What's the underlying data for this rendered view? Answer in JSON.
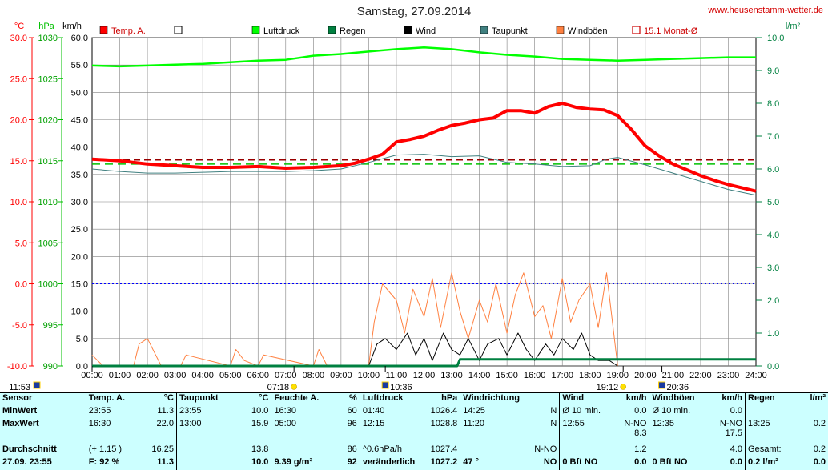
{
  "title": "Samstag, 27.09.2014",
  "site": "www.heusenstamm-wetter.de",
  "axis_headers": {
    "temp": "°C",
    "hpa": "hPa",
    "kmh": "km/h",
    "rain": "l/m²"
  },
  "legend": [
    {
      "label": "Temp. A.",
      "color": "#ff0000",
      "style": "fill"
    },
    {
      "label": "",
      "color": "#ffffff",
      "style": "box"
    },
    {
      "label": "Luftdruck",
      "color": "#00ff00",
      "style": "fill"
    },
    {
      "label": "Regen",
      "color": "#008040",
      "style": "fill"
    },
    {
      "label": "Wind",
      "color": "#000000",
      "style": "fill"
    },
    {
      "label": "Taupunkt",
      "color": "#408080",
      "style": "fill"
    },
    {
      "label": "Windböen",
      "color": "#ff8040",
      "style": "fill"
    },
    {
      "label": "15.1 Monat-Ø",
      "color": "#cc0000",
      "style": "outline"
    }
  ],
  "colors": {
    "temp": "#ff0000",
    "pressure": "#00ff00",
    "rain": "#008040",
    "wind": "#000000",
    "dew": "#408080",
    "gust": "#ff8040",
    "grid": "#808080",
    "avg_temp": "#990000",
    "avg_pressure": "#00c000",
    "zero_line": "#0000ff"
  },
  "markers": [
    {
      "label": "11:53",
      "hour": 0.0,
      "icon": "moon-icon"
    },
    {
      "label": "07:18",
      "hour": 7.3,
      "icon": "sun-icon"
    },
    {
      "label": "10:36",
      "hour": 10.6,
      "icon": "moon-icon"
    },
    {
      "label": "19:12",
      "hour": 19.2,
      "icon": "sun-icon"
    },
    {
      "label": "20:36",
      "hour": 20.6,
      "icon": "moon-icon"
    }
  ],
  "chart_data": {
    "type": "line",
    "title": "Samstag, 27.09.2014",
    "x_ticks": [
      "00:00",
      "01:00",
      "02:00",
      "03:00",
      "04:00",
      "05:00",
      "06:00",
      "07:00",
      "08:00",
      "09:00",
      "10:00",
      "11:00",
      "12:00",
      "13:00",
      "14:00",
      "15:00",
      "16:00",
      "17:00",
      "18:00",
      "19:00",
      "20:00",
      "21:00",
      "22:00",
      "23:00",
      "24:00"
    ],
    "xlim": [
      0,
      24
    ],
    "axes": {
      "temp": {
        "label": "°C",
        "ticks": [
          "30.0",
          "25.0",
          "20.0",
          "15.0",
          "10.0",
          "5.0",
          "0.0",
          "-5.0",
          "-10.0"
        ],
        "ylim": [
          -10,
          30
        ]
      },
      "pressure": {
        "label": "hPa",
        "ticks": [
          "1030",
          "1025",
          "1020",
          "1015",
          "1010",
          "1005",
          "1000",
          "995",
          "990"
        ],
        "ylim": [
          990,
          1030
        ]
      },
      "wind": {
        "label": "km/h",
        "ticks": [
          "60.0",
          "55.0",
          "50.0",
          "45.0",
          "40.0",
          "35.0",
          "30.0",
          "25.0",
          "20.0",
          "15.0",
          "10.0",
          "5.0",
          "0.0"
        ],
        "ylim": [
          0,
          60
        ]
      },
      "rain": {
        "label": "l/m²",
        "ticks": [
          "10.0",
          "9.0",
          "8.0",
          "7.0",
          "6.0",
          "5.0",
          "4.0",
          "3.0",
          "2.0",
          "1.0",
          "0.0"
        ],
        "ylim": [
          0,
          10
        ]
      }
    },
    "series": [
      {
        "name": "Temp. A.",
        "axis": "temp",
        "x": [
          0,
          1,
          2,
          3,
          4,
          5,
          6,
          7,
          8,
          9,
          9.5,
          10,
          10.5,
          11,
          11.5,
          12,
          12.5,
          13,
          13.5,
          14,
          14.5,
          15,
          15.5,
          16,
          16.5,
          17,
          17.5,
          18,
          18.5,
          19,
          19.5,
          20,
          20.5,
          21,
          21.5,
          22,
          22.5,
          23,
          23.5,
          24
        ],
        "y": [
          15.2,
          15.0,
          14.6,
          14.4,
          14.2,
          14.2,
          14.3,
          14.1,
          14.2,
          14.4,
          14.7,
          15.2,
          15.8,
          17.3,
          17.6,
          18.0,
          18.7,
          19.3,
          19.6,
          20.0,
          20.2,
          21.1,
          21.1,
          20.8,
          21.6,
          22.0,
          21.5,
          21.3,
          21.2,
          20.5,
          18.8,
          16.8,
          15.6,
          14.6,
          13.9,
          13.2,
          12.6,
          12.1,
          11.7,
          11.3
        ]
      },
      {
        "name": "Luftdruck",
        "axis": "pressure",
        "x": [
          0,
          1,
          2,
          3,
          4,
          5,
          6,
          7,
          8,
          9,
          10,
          11,
          12,
          13,
          14,
          15,
          16,
          17,
          18,
          19,
          20,
          21,
          22,
          23,
          24
        ],
        "y": [
          1026.6,
          1026.5,
          1026.6,
          1026.7,
          1026.8,
          1027.0,
          1027.2,
          1027.3,
          1027.8,
          1028.0,
          1028.3,
          1028.6,
          1028.8,
          1028.6,
          1028.2,
          1027.9,
          1027.7,
          1027.4,
          1027.3,
          1027.2,
          1027.3,
          1027.4,
          1027.5,
          1027.6,
          1027.6
        ]
      },
      {
        "name": "Taupunkt",
        "axis": "temp",
        "x": [
          0,
          1,
          2,
          3,
          4,
          5,
          6,
          7,
          8,
          9,
          10,
          11,
          12,
          13,
          14,
          15,
          16,
          17,
          18,
          18.6,
          19,
          20,
          21,
          22,
          23,
          24
        ],
        "y": [
          14.0,
          13.7,
          13.5,
          13.5,
          13.6,
          13.7,
          13.7,
          13.7,
          13.8,
          14.0,
          14.8,
          15.7,
          15.8,
          15.5,
          15.6,
          14.8,
          14.6,
          14.3,
          14.4,
          15.2,
          15.4,
          14.5,
          13.5,
          12.5,
          11.5,
          10.8
        ]
      },
      {
        "name": "Wind",
        "axis": "wind",
        "x": [
          10,
          10.3,
          10.6,
          11,
          11.4,
          11.7,
          12,
          12.3,
          12.7,
          13,
          13.3,
          13.6,
          14,
          14.3,
          14.7,
          15,
          15.4,
          15.7,
          16,
          16.4,
          16.7,
          17,
          17.4,
          17.7,
          18,
          18.3,
          18.7,
          19
        ],
        "y": [
          0,
          4,
          5,
          3,
          6,
          2,
          5,
          1,
          6,
          3,
          2,
          5,
          1,
          4,
          5,
          2,
          6,
          3,
          1,
          4,
          2,
          5,
          3,
          6,
          2,
          1,
          1,
          0
        ]
      },
      {
        "name": "Windböen",
        "axis": "wind",
        "x": [
          0,
          0.2,
          0.4,
          1.5,
          1.7,
          2,
          2.3,
          2.5,
          3.2,
          3.4,
          5,
          5.2,
          5.5,
          6,
          6.2,
          8,
          8.2,
          8.5,
          10,
          10.2,
          10.5,
          11,
          11.3,
          11.6,
          12,
          12.3,
          12.6,
          13,
          13.3,
          13.6,
          14,
          14.3,
          14.6,
          15,
          15.3,
          15.6,
          16,
          16.3,
          16.6,
          17,
          17.3,
          17.6,
          18,
          18.3,
          18.6,
          19
        ],
        "y": [
          2,
          1,
          0,
          0,
          4,
          5,
          2,
          0,
          0,
          2,
          0,
          3,
          1,
          0,
          2,
          0,
          3,
          0,
          0,
          8,
          15,
          12,
          6,
          14,
          9,
          16,
          7,
          17,
          10,
          5,
          12,
          8,
          15,
          6,
          13,
          17,
          9,
          11,
          5,
          16,
          8,
          12,
          15,
          7,
          17,
          0
        ]
      },
      {
        "name": "Regen",
        "axis": "rain",
        "x": [
          0,
          13.2,
          13.3,
          24
        ],
        "y": [
          0,
          0,
          0.2,
          0.2
        ]
      }
    ],
    "reference_lines": [
      {
        "name": "15.1 Monat-Ø",
        "axis": "temp",
        "value": 15.1
      },
      {
        "name": "Luftdruck Ø",
        "axis": "pressure",
        "value": 1014.6
      },
      {
        "name": "Nulllinie",
        "axis": "temp",
        "value": 0
      }
    ],
    "grid": true
  },
  "stats": {
    "headers": [
      {
        "name": "Sensor",
        "unit": ""
      },
      {
        "name": "Temp. A.",
        "unit": "°C"
      },
      {
        "name": "Taupunkt",
        "unit": "°C"
      },
      {
        "name": "Feuchte A.",
        "unit": "%"
      },
      {
        "name": "Luftdruck",
        "unit": "hPa"
      },
      {
        "name": "Windrichtung",
        "unit": ""
      },
      {
        "name": "Wind",
        "unit": "km/h"
      },
      {
        "name": "Windböen",
        "unit": "km/h"
      },
      {
        "name": "Regen",
        "unit": "l/m²"
      }
    ],
    "rows": [
      [
        [
          "MinWert",
          ""
        ],
        [
          "23:55",
          "11.3"
        ],
        [
          "23:55",
          "10.0"
        ],
        [
          "16:30",
          "60"
        ],
        [
          "01:40",
          "1026.4"
        ],
        [
          "14:25",
          "N"
        ],
        [
          "Ø 10 min.",
          "0.0"
        ],
        [
          "Ø 10 min.",
          "0.0"
        ],
        [
          "",
          ""
        ]
      ],
      [
        [
          "MaxWert",
          ""
        ],
        [
          "16:30",
          "22.0"
        ],
        [
          "13:00",
          "15.9"
        ],
        [
          "05:00",
          "96"
        ],
        [
          "12:15",
          "1028.8"
        ],
        [
          "11:20",
          "N"
        ],
        [
          "12:55",
          "N-NO 8.3"
        ],
        [
          "12:35",
          "N-NO 17.5"
        ],
        [
          "13:25",
          "0.2"
        ]
      ],
      [
        [
          "Durchschnitt",
          ""
        ],
        [
          "(+ 1.15 )",
          "16.25"
        ],
        [
          "",
          "13.8"
        ],
        [
          "",
          "86"
        ],
        [
          "^0.6hPa/h",
          "1027.4"
        ],
        [
          "",
          "N-NO"
        ],
        [
          "",
          "1.2"
        ],
        [
          "",
          "4.0"
        ],
        [
          "Gesamt:",
          "0.2"
        ]
      ],
      [
        [
          "27.09. 23:55",
          ""
        ],
        [
          "F: 92 %",
          "11.3"
        ],
        [
          "",
          "10.0"
        ],
        [
          "9.39 g/m³",
          "92"
        ],
        [
          "veränderlich",
          "1027.2"
        ],
        [
          "47 °",
          "NO"
        ],
        [
          "0 Bft NO",
          "0.0"
        ],
        [
          "0 Bft NO",
          "0.0"
        ],
        [
          "0.2 l/m²",
          "0.0"
        ]
      ]
    ]
  }
}
